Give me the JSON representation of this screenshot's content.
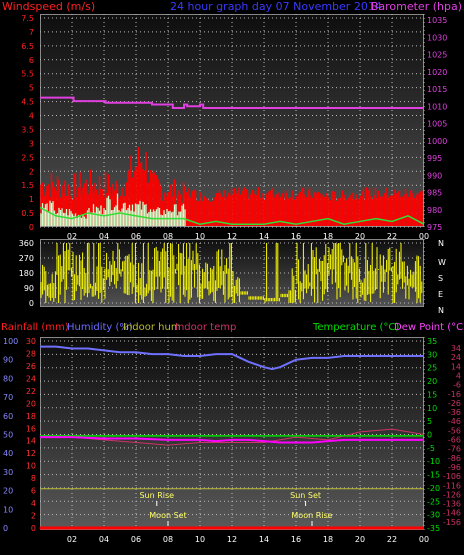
{
  "chart_data": [
    {
      "type": "line",
      "panel": "wind_pressure",
      "title": "24 hour graph day  07 November 2014",
      "y_left_label": "Windspeed (m/s)",
      "y_right_label": "Barometer (hpa)",
      "y_left_ticks": [
        "7.5",
        "7",
        "6.5",
        "6",
        "5.5",
        "5",
        "4.5",
        "4",
        "3.5",
        "3",
        "2.5",
        "2",
        "1.5",
        "1",
        "0.5",
        "0"
      ],
      "y_left_range": [
        0,
        7.5
      ],
      "y_right_ticks": [
        "1035",
        "1030",
        "1025",
        "1020",
        "1015",
        "1010",
        "1005",
        "1000",
        "995",
        "990",
        "985",
        "980",
        "975"
      ],
      "y_right_range": [
        975,
        1035
      ],
      "x_range": [
        0,
        24
      ],
      "x_ticks": [
        "02",
        "04",
        "06",
        "08",
        "10",
        "12",
        "14",
        "16",
        "18",
        "20",
        "22",
        "00"
      ],
      "grid": true,
      "series": [
        {
          "name": "Barometer",
          "color": "#e040e0",
          "x": [
            0,
            2,
            2.1,
            4,
            4.1,
            6,
            7,
            8.1,
            8.3,
            9,
            9.2,
            10,
            10.2,
            12,
            12.2,
            24
          ],
          "y": [
            1012.5,
            1012.5,
            1011.5,
            1011.5,
            1011,
            1011,
            1010.5,
            1010.5,
            1009.5,
            1010.5,
            1010,
            1010.5,
            1009.5,
            1009.5,
            1009.5,
            1009.5
          ]
        },
        {
          "name": "Wind Gust",
          "color": "#ff0000",
          "x": [
            0,
            1,
            2,
            3,
            4,
            5,
            6,
            6.5,
            7,
            8,
            9,
            10,
            11,
            12,
            13,
            14,
            15,
            16,
            17,
            18,
            19,
            20,
            21,
            22,
            23,
            24
          ],
          "y": [
            1.8,
            1.8,
            1.7,
            1.8,
            1.8,
            1.6,
            2.6,
            3.0,
            1.8,
            1.6,
            1.4,
            1.2,
            1.2,
            1.3,
            1.3,
            1.3,
            1.3,
            1.3,
            1.3,
            1.2,
            1.2,
            1.3,
            1.3,
            1.3,
            1.3,
            1.4
          ]
        },
        {
          "name": "Wind Avg",
          "color": "#33dd33",
          "x": [
            0,
            1,
            2,
            3,
            4,
            5,
            6,
            7,
            8,
            9,
            10,
            11,
            12,
            13,
            14,
            15,
            16,
            17,
            18,
            19,
            20,
            21,
            22,
            23,
            24
          ],
          "y": [
            0.7,
            0.4,
            0.3,
            0.5,
            0.4,
            0.5,
            0.4,
            0.3,
            0.3,
            0.3,
            0.1,
            0.2,
            0.1,
            0.1,
            0.1,
            0.2,
            0.1,
            0.2,
            0.3,
            0.1,
            0.2,
            0.3,
            0.2,
            0.4,
            0.1
          ]
        },
        {
          "name": "Wind Light",
          "color": "#ccffcc",
          "x": [
            0,
            1,
            2,
            3,
            4,
            5,
            6,
            7,
            8,
            9
          ],
          "y": [
            0.8,
            0.6,
            0.5,
            0.7,
            1.0,
            0.9,
            0.8,
            0.6,
            0.7,
            0.6
          ]
        }
      ]
    },
    {
      "type": "scatter",
      "panel": "wind_direction",
      "y_ticks": [
        "360",
        "270",
        "180",
        "90",
        "0"
      ],
      "y_range": [
        0,
        360
      ],
      "x_range": [
        0,
        24
      ],
      "compass_labels": [
        "N",
        "W",
        "S",
        "E",
        "N"
      ],
      "series": [
        {
          "name": "Wind Direction",
          "color": "#ffff00",
          "x": [
            0,
            1,
            2,
            3,
            4,
            5,
            6,
            7,
            8,
            9,
            10,
            11,
            12,
            13,
            14,
            15,
            16,
            17,
            18,
            19,
            20,
            21,
            22,
            23,
            24
          ],
          "y": [
            90,
            200,
            150,
            90,
            180,
            200,
            90,
            180,
            200,
            220,
            90,
            180,
            60,
            30,
            20,
            45,
            120,
            200,
            250,
            180,
            90,
            200,
            160,
            120,
            180
          ]
        }
      ]
    },
    {
      "type": "line",
      "panel": "temp_humidity",
      "labels_left": [
        "Rainfall (mm)",
        "Humidity (%)",
        "Indoor hum",
        "Indoor temp"
      ],
      "labels_right": [
        "Temperature (°C)",
        "Dew Point (°C)"
      ],
      "y_hum_ticks": [
        "100",
        "90",
        "80",
        "70",
        "60",
        "50",
        "40",
        "30",
        "20",
        "10",
        "0"
      ],
      "y_hum_range": [
        0,
        100
      ],
      "y_rain_ticks": [
        "30",
        "28",
        "26",
        "24",
        "22",
        "20",
        "18",
        "16",
        "14",
        "12",
        "10",
        "8",
        "6",
        "4",
        "2",
        "0"
      ],
      "y_rain_range": [
        0,
        30
      ],
      "y_temp_ticks": [
        "35",
        "30",
        "25",
        "20",
        "15",
        "10",
        "5",
        "0",
        "-5",
        "-10",
        "-15",
        "-20",
        "-25",
        "-30",
        "-35"
      ],
      "y_temp_range": [
        -35,
        35
      ],
      "y_temp2_ticks": [
        "34",
        "24",
        "14",
        "4",
        "-6",
        "-16",
        "-26",
        "-36",
        "-46",
        "-56",
        "-66",
        "-76",
        "-86",
        "-96",
        "-106",
        "-116",
        "-126",
        "-136",
        "-146",
        "-156"
      ],
      "y_temp2_range": [
        -36,
        34
      ],
      "x_range": [
        0,
        24
      ],
      "x_ticks": [
        "02",
        "04",
        "06",
        "08",
        "10",
        "12",
        "14",
        "16",
        "18",
        "20",
        "22",
        "00"
      ],
      "annotations": [
        {
          "text": "Sun Rise",
          "x": 7.3
        },
        {
          "text": "Sun Set",
          "x": 16.6
        },
        {
          "text": "Moon Set",
          "x": 8.0
        },
        {
          "text": "Moon Rise",
          "x": 17.0
        }
      ],
      "series": [
        {
          "name": "Humidity",
          "color": "#7070ff",
          "x": [
            0,
            1,
            2,
            3,
            4,
            5,
            6,
            7,
            8,
            9,
            10,
            11,
            12,
            12.5,
            13,
            14,
            14.5,
            15,
            15.5,
            16,
            17,
            18,
            19,
            20,
            21,
            22,
            23,
            24
          ],
          "y": [
            97,
            97,
            96,
            96,
            95,
            94,
            94,
            93,
            93,
            92,
            92,
            93,
            93,
            91,
            89,
            86,
            85,
            86,
            88,
            90,
            91,
            91,
            92,
            92,
            92,
            92,
            92,
            92
          ]
        },
        {
          "name": "Temperature",
          "color": "#00dd00",
          "x": [
            0,
            2,
            4,
            6,
            8,
            10,
            12,
            14,
            16,
            18,
            20,
            22,
            24
          ],
          "y": [
            -0.5,
            -0.5,
            -0.5,
            -0.5,
            -0.5,
            -0.5,
            -0.5,
            -0.5,
            -0.5,
            -0.5,
            -0.5,
            -0.5,
            -0.5
          ]
        },
        {
          "name": "Dew Point",
          "color": "#ff00ff",
          "x": [
            0,
            2,
            4,
            6,
            8,
            9,
            10,
            11,
            12,
            13,
            14,
            15,
            16,
            17,
            18,
            19,
            20,
            21,
            22,
            23,
            24
          ],
          "y": [
            -1,
            -1,
            -1.5,
            -1.5,
            -2,
            -2,
            -2,
            -2.5,
            -2,
            -2,
            -2.5,
            -3,
            -3,
            -3,
            -2.5,
            -2,
            -2,
            -2,
            -2,
            -2,
            -2
          ]
        },
        {
          "name": "Indoor temp",
          "color": "#cc3366",
          "x": [
            0,
            2,
            4,
            6,
            8,
            10,
            12,
            14,
            16,
            18,
            20,
            22,
            24
          ],
          "y": [
            -1,
            -1,
            -2,
            -3,
            -4,
            -3,
            -3,
            -3,
            -1,
            -2,
            1,
            2,
            0
          ]
        },
        {
          "name": "Indoor hum",
          "color": "#bbbb33",
          "x": [
            0,
            24
          ],
          "y": [
            21,
            21
          ]
        },
        {
          "name": "Rainfall",
          "color": "#ff0000",
          "x": [
            0,
            24
          ],
          "y": [
            0,
            0
          ]
        }
      ]
    }
  ]
}
